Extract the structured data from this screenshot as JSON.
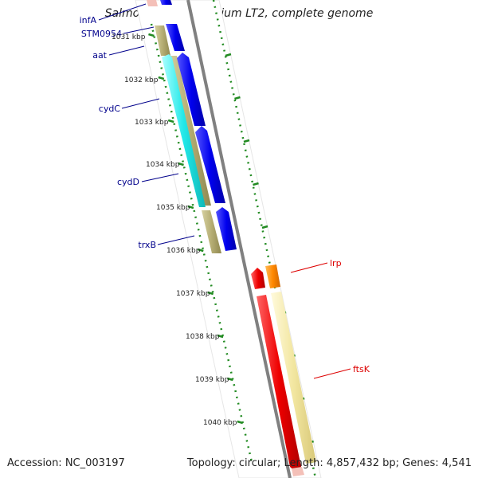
{
  "title": "Salmonella typhimurium LT2, complete genome",
  "footer": {
    "accession": "Accession: NC_003197",
    "topology": "Topology: circular; Length: 4,857,432 bp; Genes: 4,541"
  },
  "ruler": {
    "unit": "kbp",
    "ticks": [
      "1031 kbp",
      "1032 kbp",
      "1033 kbp",
      "1034 kbp",
      "1035 kbp",
      "1036 kbp",
      "1037 kbp",
      "1038 kbp",
      "1039 kbp",
      "1040 kbp"
    ]
  },
  "colors": {
    "blue_gene": "#0000ee",
    "olive_gene": "#b5ad73",
    "cyan_gene": "#22e8e8",
    "red_gene": "#ee0000",
    "orange_gene": "#ff8800",
    "yellow_gene": "#f2e6a0",
    "pink_gene": "#f4c0b8",
    "backbone": "#808080",
    "tick": "#228b22",
    "label_left": "#00008b",
    "label_right": "#dd0000"
  },
  "gene_labels": [
    {
      "name": "infA",
      "side": "left"
    },
    {
      "name": "STM0954",
      "side": "left"
    },
    {
      "name": "aat",
      "side": "left"
    },
    {
      "name": "cydC",
      "side": "left"
    },
    {
      "name": "cydD",
      "side": "left"
    },
    {
      "name": "trxB",
      "side": "left"
    },
    {
      "name": "lrp",
      "side": "right"
    },
    {
      "name": "ftsK",
      "side": "right"
    }
  ]
}
